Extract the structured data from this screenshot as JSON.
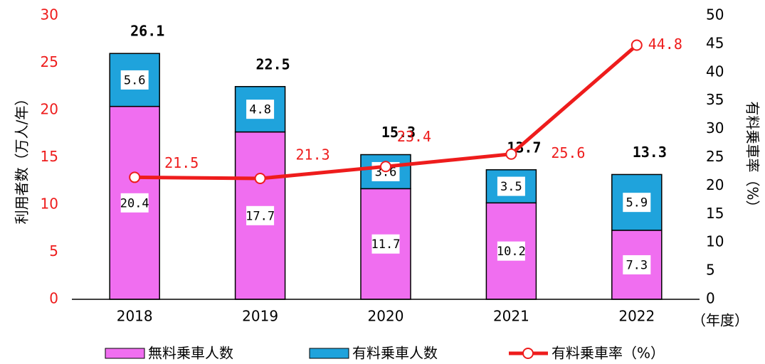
{
  "chart_data": {
    "type": "bar",
    "categories": [
      "2018",
      "2019",
      "2020",
      "2021",
      "2022"
    ],
    "series": [
      {
        "name": "無料乗車人数",
        "color": "#f06ef0",
        "values": [
          20.4,
          17.7,
          11.7,
          10.2,
          7.3
        ]
      },
      {
        "name": "有料乗車人数",
        "color": "#1fa3dc",
        "values": [
          5.6,
          4.8,
          3.6,
          3.5,
          5.9
        ]
      },
      {
        "name": "有料乗車率（%）",
        "type": "line",
        "axis": "y2",
        "color": "#ee1c1c",
        "values": [
          21.5,
          21.3,
          23.4,
          25.6,
          44.8
        ]
      }
    ],
    "totals": [
      26.1,
      22.5,
      15.3,
      13.7,
      13.3
    ],
    "ylabel": "利用者数（万人/年）",
    "y2label": "有料乗車率（%）",
    "xlabel": "（年度）",
    "ylim": [
      0,
      30
    ],
    "yticks": [
      0,
      5,
      10,
      15,
      20,
      25,
      30
    ],
    "y2lim": [
      0,
      50
    ],
    "y2ticks": [
      0,
      5,
      10,
      15,
      20,
      25,
      30,
      35,
      40,
      45,
      50
    ],
    "grid": false,
    "legend": "bottom"
  }
}
